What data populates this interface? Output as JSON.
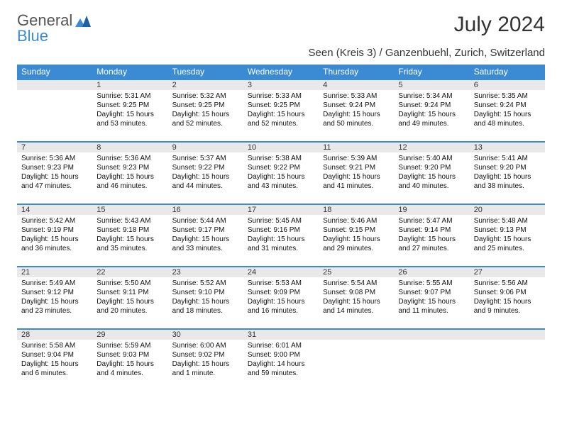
{
  "brand": {
    "word1": "General",
    "word2": "Blue"
  },
  "title": "July 2024",
  "location": "Seen (Kreis 3) / Ganzenbuehl, Zurich, Switzerland",
  "colors": {
    "accent": "#3b8bd4",
    "dayHeaderBg": "#e9e9e9",
    "pageBg": "#ffffff",
    "logoGray": "#555555"
  },
  "dayNames": [
    "Sunday",
    "Monday",
    "Tuesday",
    "Wednesday",
    "Thursday",
    "Friday",
    "Saturday"
  ],
  "weeks": [
    [
      {
        "n": "",
        "sr": "",
        "ss": "",
        "d1": "",
        "d2": ""
      },
      {
        "n": "1",
        "sr": "Sunrise: 5:31 AM",
        "ss": "Sunset: 9:25 PM",
        "d1": "Daylight: 15 hours",
        "d2": "and 53 minutes."
      },
      {
        "n": "2",
        "sr": "Sunrise: 5:32 AM",
        "ss": "Sunset: 9:25 PM",
        "d1": "Daylight: 15 hours",
        "d2": "and 52 minutes."
      },
      {
        "n": "3",
        "sr": "Sunrise: 5:33 AM",
        "ss": "Sunset: 9:25 PM",
        "d1": "Daylight: 15 hours",
        "d2": "and 52 minutes."
      },
      {
        "n": "4",
        "sr": "Sunrise: 5:33 AM",
        "ss": "Sunset: 9:24 PM",
        "d1": "Daylight: 15 hours",
        "d2": "and 50 minutes."
      },
      {
        "n": "5",
        "sr": "Sunrise: 5:34 AM",
        "ss": "Sunset: 9:24 PM",
        "d1": "Daylight: 15 hours",
        "d2": "and 49 minutes."
      },
      {
        "n": "6",
        "sr": "Sunrise: 5:35 AM",
        "ss": "Sunset: 9:24 PM",
        "d1": "Daylight: 15 hours",
        "d2": "and 48 minutes."
      }
    ],
    [
      {
        "n": "7",
        "sr": "Sunrise: 5:36 AM",
        "ss": "Sunset: 9:23 PM",
        "d1": "Daylight: 15 hours",
        "d2": "and 47 minutes."
      },
      {
        "n": "8",
        "sr": "Sunrise: 5:36 AM",
        "ss": "Sunset: 9:23 PM",
        "d1": "Daylight: 15 hours",
        "d2": "and 46 minutes."
      },
      {
        "n": "9",
        "sr": "Sunrise: 5:37 AM",
        "ss": "Sunset: 9:22 PM",
        "d1": "Daylight: 15 hours",
        "d2": "and 44 minutes."
      },
      {
        "n": "10",
        "sr": "Sunrise: 5:38 AM",
        "ss": "Sunset: 9:22 PM",
        "d1": "Daylight: 15 hours",
        "d2": "and 43 minutes."
      },
      {
        "n": "11",
        "sr": "Sunrise: 5:39 AM",
        "ss": "Sunset: 9:21 PM",
        "d1": "Daylight: 15 hours",
        "d2": "and 41 minutes."
      },
      {
        "n": "12",
        "sr": "Sunrise: 5:40 AM",
        "ss": "Sunset: 9:20 PM",
        "d1": "Daylight: 15 hours",
        "d2": "and 40 minutes."
      },
      {
        "n": "13",
        "sr": "Sunrise: 5:41 AM",
        "ss": "Sunset: 9:20 PM",
        "d1": "Daylight: 15 hours",
        "d2": "and 38 minutes."
      }
    ],
    [
      {
        "n": "14",
        "sr": "Sunrise: 5:42 AM",
        "ss": "Sunset: 9:19 PM",
        "d1": "Daylight: 15 hours",
        "d2": "and 36 minutes."
      },
      {
        "n": "15",
        "sr": "Sunrise: 5:43 AM",
        "ss": "Sunset: 9:18 PM",
        "d1": "Daylight: 15 hours",
        "d2": "and 35 minutes."
      },
      {
        "n": "16",
        "sr": "Sunrise: 5:44 AM",
        "ss": "Sunset: 9:17 PM",
        "d1": "Daylight: 15 hours",
        "d2": "and 33 minutes."
      },
      {
        "n": "17",
        "sr": "Sunrise: 5:45 AM",
        "ss": "Sunset: 9:16 PM",
        "d1": "Daylight: 15 hours",
        "d2": "and 31 minutes."
      },
      {
        "n": "18",
        "sr": "Sunrise: 5:46 AM",
        "ss": "Sunset: 9:15 PM",
        "d1": "Daylight: 15 hours",
        "d2": "and 29 minutes."
      },
      {
        "n": "19",
        "sr": "Sunrise: 5:47 AM",
        "ss": "Sunset: 9:14 PM",
        "d1": "Daylight: 15 hours",
        "d2": "and 27 minutes."
      },
      {
        "n": "20",
        "sr": "Sunrise: 5:48 AM",
        "ss": "Sunset: 9:13 PM",
        "d1": "Daylight: 15 hours",
        "d2": "and 25 minutes."
      }
    ],
    [
      {
        "n": "21",
        "sr": "Sunrise: 5:49 AM",
        "ss": "Sunset: 9:12 PM",
        "d1": "Daylight: 15 hours",
        "d2": "and 23 minutes."
      },
      {
        "n": "22",
        "sr": "Sunrise: 5:50 AM",
        "ss": "Sunset: 9:11 PM",
        "d1": "Daylight: 15 hours",
        "d2": "and 20 minutes."
      },
      {
        "n": "23",
        "sr": "Sunrise: 5:52 AM",
        "ss": "Sunset: 9:10 PM",
        "d1": "Daylight: 15 hours",
        "d2": "and 18 minutes."
      },
      {
        "n": "24",
        "sr": "Sunrise: 5:53 AM",
        "ss": "Sunset: 9:09 PM",
        "d1": "Daylight: 15 hours",
        "d2": "and 16 minutes."
      },
      {
        "n": "25",
        "sr": "Sunrise: 5:54 AM",
        "ss": "Sunset: 9:08 PM",
        "d1": "Daylight: 15 hours",
        "d2": "and 14 minutes."
      },
      {
        "n": "26",
        "sr": "Sunrise: 5:55 AM",
        "ss": "Sunset: 9:07 PM",
        "d1": "Daylight: 15 hours",
        "d2": "and 11 minutes."
      },
      {
        "n": "27",
        "sr": "Sunrise: 5:56 AM",
        "ss": "Sunset: 9:06 PM",
        "d1": "Daylight: 15 hours",
        "d2": "and 9 minutes."
      }
    ],
    [
      {
        "n": "28",
        "sr": "Sunrise: 5:58 AM",
        "ss": "Sunset: 9:04 PM",
        "d1": "Daylight: 15 hours",
        "d2": "and 6 minutes."
      },
      {
        "n": "29",
        "sr": "Sunrise: 5:59 AM",
        "ss": "Sunset: 9:03 PM",
        "d1": "Daylight: 15 hours",
        "d2": "and 4 minutes."
      },
      {
        "n": "30",
        "sr": "Sunrise: 6:00 AM",
        "ss": "Sunset: 9:02 PM",
        "d1": "Daylight: 15 hours",
        "d2": "and 1 minute."
      },
      {
        "n": "31",
        "sr": "Sunrise: 6:01 AM",
        "ss": "Sunset: 9:00 PM",
        "d1": "Daylight: 14 hours",
        "d2": "and 59 minutes."
      },
      {
        "n": "",
        "sr": "",
        "ss": "",
        "d1": "",
        "d2": ""
      },
      {
        "n": "",
        "sr": "",
        "ss": "",
        "d1": "",
        "d2": ""
      },
      {
        "n": "",
        "sr": "",
        "ss": "",
        "d1": "",
        "d2": ""
      }
    ]
  ]
}
